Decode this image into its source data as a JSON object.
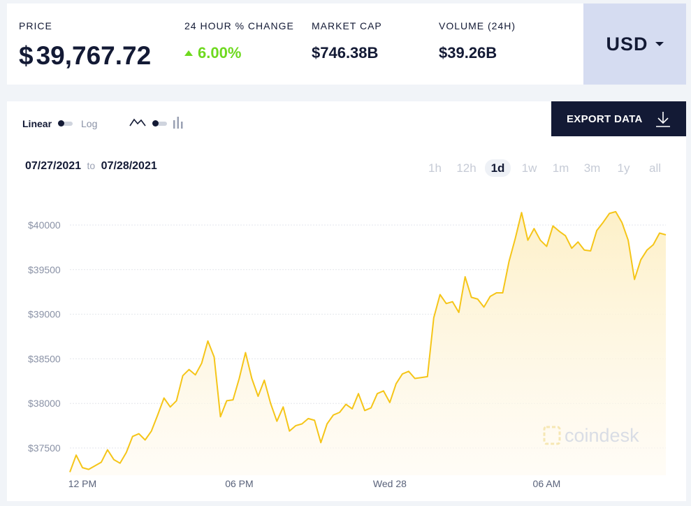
{
  "stats": {
    "price": {
      "label": "PRICE",
      "symbol": "$",
      "value": "39,767.72"
    },
    "change": {
      "label": "24 HOUR % CHANGE",
      "value": "6.00%"
    },
    "market_cap": {
      "label": "MARKET CAP",
      "value": "$746.38B"
    },
    "volume": {
      "label": "VOLUME (24H)",
      "value": "$39.26B"
    }
  },
  "currency": {
    "label": "USD"
  },
  "toolbar": {
    "linear_label": "Linear",
    "log_label": "Log",
    "export_label": "EXPORT DATA"
  },
  "daterange": {
    "from": "07/27/2021",
    "to_word": "to",
    "to": "07/28/2021"
  },
  "ranges": [
    "1h",
    "12h",
    "1d",
    "1w",
    "1m",
    "3m",
    "1y",
    "all"
  ],
  "active_range": "1d",
  "watermark": "coindesk",
  "colors": {
    "line": "#f5c518",
    "fill": "#fdf3d5",
    "accent_up": "#6ed91f",
    "navy": "#131a35",
    "currency_bg": "#d5dcf1"
  },
  "chart_data": {
    "type": "area",
    "title": "",
    "xlabel": "",
    "ylabel": "",
    "ylim": [
      37200,
      40500
    ],
    "y_ticks": [
      37500,
      38000,
      38500,
      39000,
      39500,
      40000
    ],
    "y_tick_labels": [
      "$37500",
      "$38000",
      "$38500",
      "$39000",
      "$39500",
      "$40000"
    ],
    "x_ticks": [
      {
        "label": "12 PM",
        "index": 2
      },
      {
        "label": "06 PM",
        "index": 27
      },
      {
        "label": "Wed 28",
        "index": 51
      },
      {
        "label": "06 AM",
        "index": 76
      }
    ],
    "grid": true,
    "series": [
      {
        "values": [
          37230,
          37420,
          37280,
          37260,
          37300,
          37340,
          37480,
          37370,
          37330,
          37450,
          37630,
          37660,
          37590,
          37690,
          37870,
          38060,
          37960,
          38030,
          38310,
          38380,
          38320,
          38450,
          38700,
          38520,
          37850,
          38030,
          38040,
          38280,
          38570,
          38280,
          38080,
          38260,
          38000,
          37800,
          37960,
          37690,
          37750,
          37770,
          37830,
          37810,
          37560,
          37770,
          37870,
          37900,
          37990,
          37940,
          38110,
          37920,
          37950,
          38110,
          38140,
          38010,
          38220,
          38330,
          38360,
          38280,
          38290,
          38300,
          38960,
          39220,
          39120,
          39140,
          39020,
          39420,
          39190,
          39170,
          39080,
          39200,
          39240,
          39240,
          39590,
          39850,
          40140,
          39830,
          39960,
          39830,
          39760,
          39990,
          39930,
          39880,
          39740,
          39810,
          39720,
          39710,
          39940,
          40030,
          40130,
          40150,
          40030,
          39830,
          39390,
          39610,
          39720,
          39780,
          39910,
          39890
        ]
      }
    ]
  }
}
